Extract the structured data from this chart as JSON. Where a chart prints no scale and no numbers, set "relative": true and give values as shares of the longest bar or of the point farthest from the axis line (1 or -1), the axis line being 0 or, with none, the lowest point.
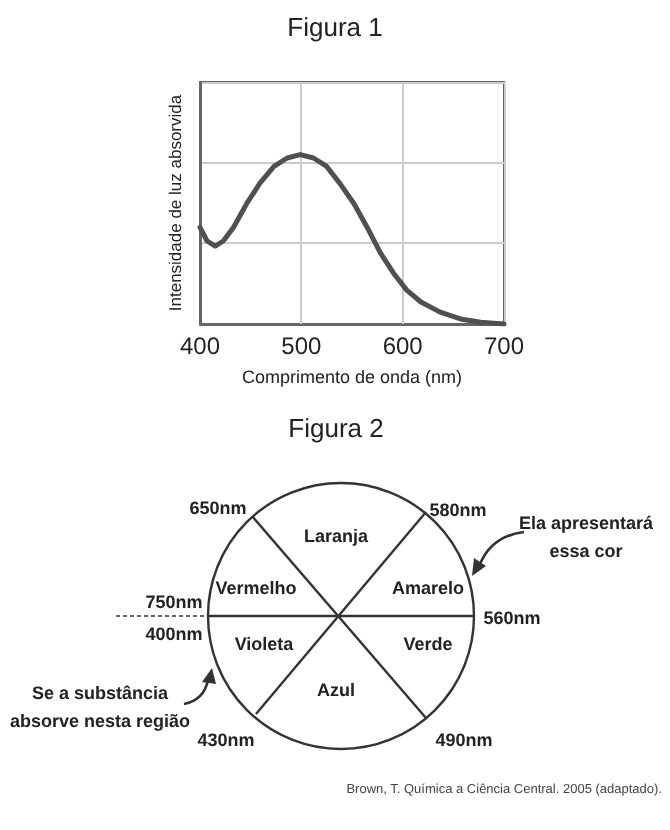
{
  "chart_data": [
    {
      "type": "line",
      "title": "Figura 1",
      "xlabel": "Comprimento de onda (nm)",
      "ylabel": "Intensidade de luz absorvida",
      "relative": true,
      "xlim": [
        400,
        700
      ],
      "xticks": [
        400,
        500,
        600,
        700
      ],
      "grid": true,
      "marker": "none",
      "color": "#505050",
      "x": [
        400,
        407,
        415,
        423,
        433,
        446,
        459,
        473,
        486,
        499,
        512,
        525,
        538,
        552,
        565,
        578,
        591,
        604,
        618,
        637,
        657,
        677,
        700
      ],
      "values": [
        0.57,
        0.49,
        0.46,
        0.49,
        0.57,
        0.71,
        0.83,
        0.93,
        0.98,
        1,
        0.98,
        0.93,
        0.83,
        0.71,
        0.57,
        0.42,
        0.3,
        0.2,
        0.13,
        0.07,
        0.03,
        0.01,
        0
      ]
    },
    {
      "type": "other",
      "title": "Figura 2",
      "annotations": [
        "Laranja",
        "Amarelo",
        "Verde",
        "Azul",
        "Violeta",
        "Vermelho",
        "650nm",
        "580nm",
        "560nm",
        "490nm",
        "430nm",
        "400nm",
        "750nm",
        "Ela apresentará essa cor",
        "Se a substância absorve nesta região",
        "Brown, T. Química a Ciência Central. 2005 (adaptado)."
      ]
    }
  ]
}
